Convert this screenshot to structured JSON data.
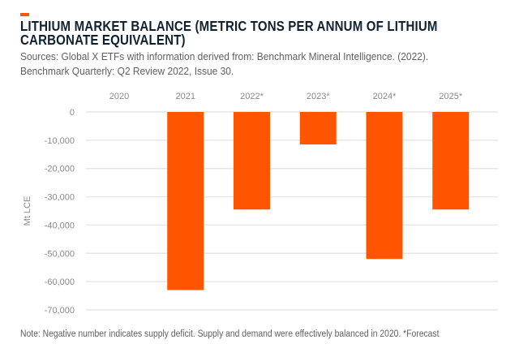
{
  "chart_data": {
    "type": "bar",
    "title_lines": [
      "LITHIUM MARKET BALANCE (METRIC TONS PER ANNUM OF LITHIUM",
      "CARBONATE EQUIVALENT)"
    ],
    "subtitle_lines": [
      "Sources: Global X ETFs with information derived from: Benchmark Mineral Intelligence. (2022).",
      "Benchmark Quarterly: Q2 Review 2022, Issue 30."
    ],
    "note": "Note: Negative number indicates supply deficit. Supply and demand were effectively balanced in 2020. *Forecast",
    "categories": [
      "2020",
      "2021",
      "2022*",
      "2023*",
      "2024*",
      "2025*"
    ],
    "values": [
      0,
      -63000,
      -34500,
      -11500,
      -52000,
      -34500
    ],
    "ylabel": "Mt LCE",
    "xlabel": "",
    "ylim": [
      -70000,
      0
    ],
    "yticks": [
      0,
      -10000,
      -20000,
      -30000,
      -40000,
      -50000,
      -60000,
      -70000
    ],
    "ytick_labels": [
      "0",
      "-10,000",
      "-20,000",
      "-30,000",
      "-40,000",
      "-50,000",
      "-60,000",
      "-70,000"
    ],
    "x_axis_position": "top",
    "grid": true,
    "bar_color": "#ff5500",
    "accent_color": "#ff5500"
  }
}
